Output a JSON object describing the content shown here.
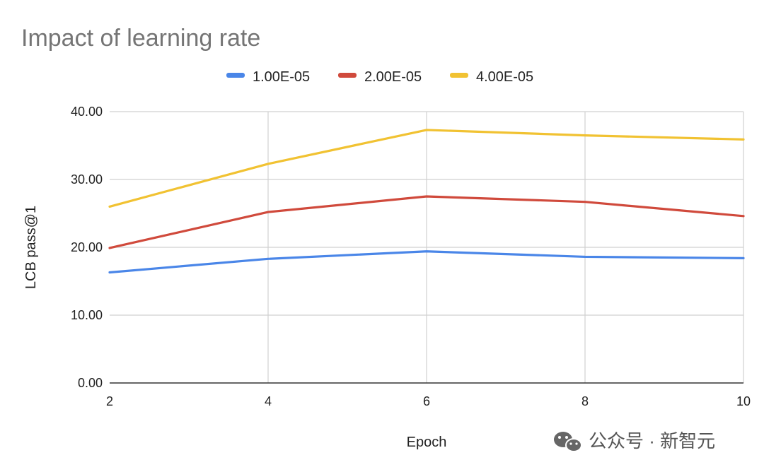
{
  "chart_data": {
    "type": "line",
    "title": "Impact of learning rate",
    "xlabel": "Epoch",
    "ylabel": "LCB pass@1",
    "x": [
      2,
      4,
      6,
      8,
      10
    ],
    "xlim": [
      2,
      10
    ],
    "ylim": [
      0,
      40
    ],
    "x_ticks": [
      "2",
      "4",
      "6",
      "8",
      "10"
    ],
    "y_ticks": [
      "0.00",
      "10.00",
      "20.00",
      "30.00",
      "40.00"
    ],
    "grid": true,
    "legend_position": "top",
    "series": [
      {
        "name": "1.00E-05",
        "color": "#4a86e8",
        "values": [
          16.3,
          18.3,
          19.4,
          18.6,
          18.4
        ]
      },
      {
        "name": "2.00E-05",
        "color": "#d04a3c",
        "values": [
          19.9,
          25.2,
          27.5,
          26.7,
          24.6
        ]
      },
      {
        "name": "4.00E-05",
        "color": "#f1c232",
        "values": [
          26.0,
          32.3,
          37.3,
          36.5,
          35.9
        ]
      }
    ]
  },
  "watermark": {
    "icon": "wechat-icon",
    "text": "公众号 · 新智元"
  }
}
